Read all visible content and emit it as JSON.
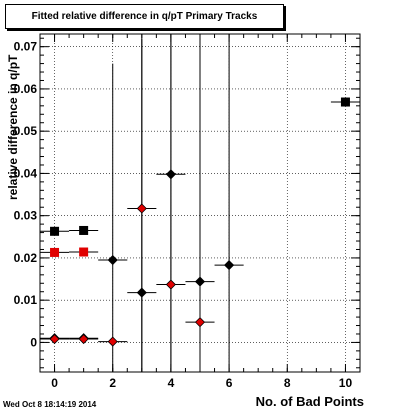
{
  "chart_data": {
    "type": "scatter",
    "title": "Fitted relative difference in q/pT Primary Tracks",
    "xlabel": "No. of Bad Points",
    "ylabel": "relative difference in q/pT",
    "xlim": [
      -0.5,
      10.5
    ],
    "ylim": [
      -0.007,
      0.073
    ],
    "xticks": [
      "0",
      "2",
      "4",
      "6",
      "8",
      "10"
    ],
    "yticks": [
      "0",
      "0.01",
      "0.02",
      "0.03",
      "0.04",
      "0.05",
      "0.06",
      "0.07"
    ],
    "grid": true,
    "series": [
      {
        "marker": "square",
        "color": "#000000",
        "points": [
          {
            "x": 0,
            "y": 0.0263,
            "xerr": 0.5,
            "yerr": 0.0006
          },
          {
            "x": 1,
            "y": 0.0265,
            "xerr": 0.5,
            "yerr": 0.0006
          },
          {
            "x": 10,
            "y": 0.0569,
            "xerr": 0.5,
            "yerr": 0.001
          }
        ]
      },
      {
        "marker": "square",
        "color": "#e00000",
        "points": [
          {
            "x": 0,
            "y": 0.0213,
            "xerr": 0.5,
            "yerr": 0.0006
          },
          {
            "x": 1,
            "y": 0.0214,
            "xerr": 0.5,
            "yerr": 0.0006
          }
        ]
      },
      {
        "marker": "diamond",
        "color": "#000000",
        "points": [
          {
            "x": 0,
            "y": 0.001,
            "xerr": 0.5,
            "yerr": 0.0005
          },
          {
            "x": 1,
            "y": 0.001,
            "xerr": 0.5,
            "yerr": 0.0005
          },
          {
            "x": 2,
            "y": 0.0195,
            "xerr": 0.5,
            "yerr": 0.0465
          },
          {
            "x": 3,
            "y": 0.0118,
            "xerr": 0.5,
            "yerr": 0.06
          },
          {
            "x": 4,
            "y": 0.0398,
            "xerr": 0.5,
            "yerr": 0.06
          },
          {
            "x": 5,
            "y": 0.0144,
            "xerr": 0.5,
            "yerr": 0.06
          },
          {
            "x": 6,
            "y": 0.0183,
            "xerr": 0.5,
            "yerr": 0.06
          }
        ]
      },
      {
        "marker": "diamond",
        "color": "#e00000",
        "points": [
          {
            "x": 0,
            "y": 0.0008,
            "xerr": 0.5,
            "yerr": 0.0005
          },
          {
            "x": 1,
            "y": 0.0008,
            "xerr": 0.5,
            "yerr": 0.0005
          },
          {
            "x": 2,
            "y": 0.0002,
            "xerr": 0.5,
            "yerr": 0.0005
          },
          {
            "x": 3,
            "y": 0.0317,
            "xerr": 0.5,
            "yerr": 0.06
          },
          {
            "x": 4,
            "y": 0.0137,
            "xerr": 0.5,
            "yerr": 0.06
          },
          {
            "x": 5,
            "y": 0.0048,
            "xerr": 0.5,
            "yerr": 0.06
          }
        ]
      }
    ]
  },
  "footer": {
    "timestamp": "Wed Oct  8 18:14:19 2014"
  }
}
